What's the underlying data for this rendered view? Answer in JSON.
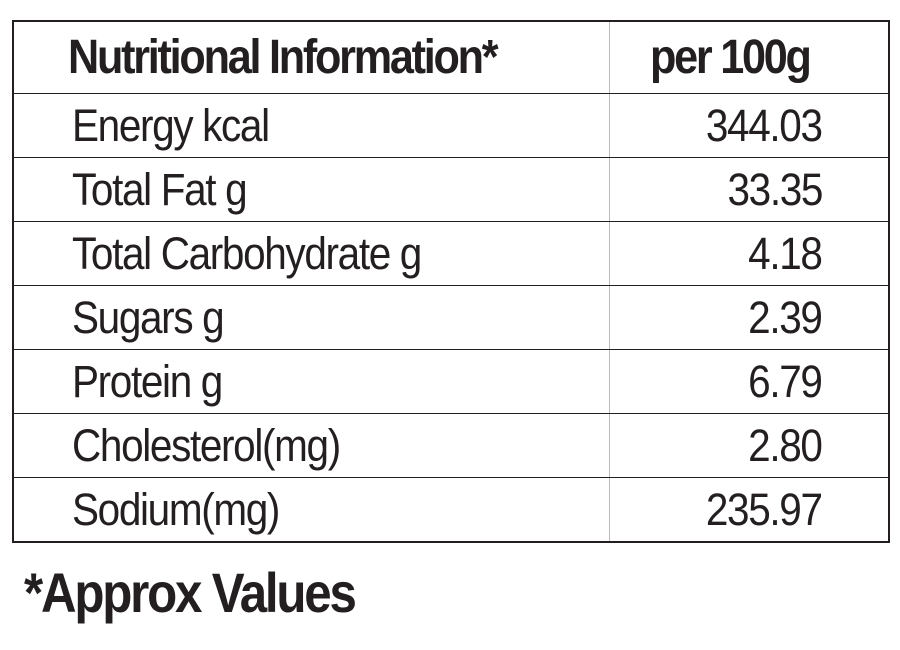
{
  "table": {
    "header": {
      "name": "Nutritional Information*",
      "value": "per 100g"
    },
    "rows": [
      {
        "name": "Energy kcal",
        "value": "344.03"
      },
      {
        "name": "Total Fat g",
        "value": "33.35"
      },
      {
        "name": "Total Carbohydrate g",
        "value": "4.18"
      },
      {
        "name": "Sugars g",
        "value": "2.39"
      },
      {
        "name": "Protein g",
        "value": "6.79"
      },
      {
        "name": "Cholesterol(mg)",
        "value": "2.80"
      },
      {
        "name": "Sodium(mg)",
        "value": "235.97"
      }
    ]
  },
  "footnote": "*Approx Values",
  "colors": {
    "text": "#231f20",
    "border": "#231f20",
    "background": "#ffffff"
  }
}
